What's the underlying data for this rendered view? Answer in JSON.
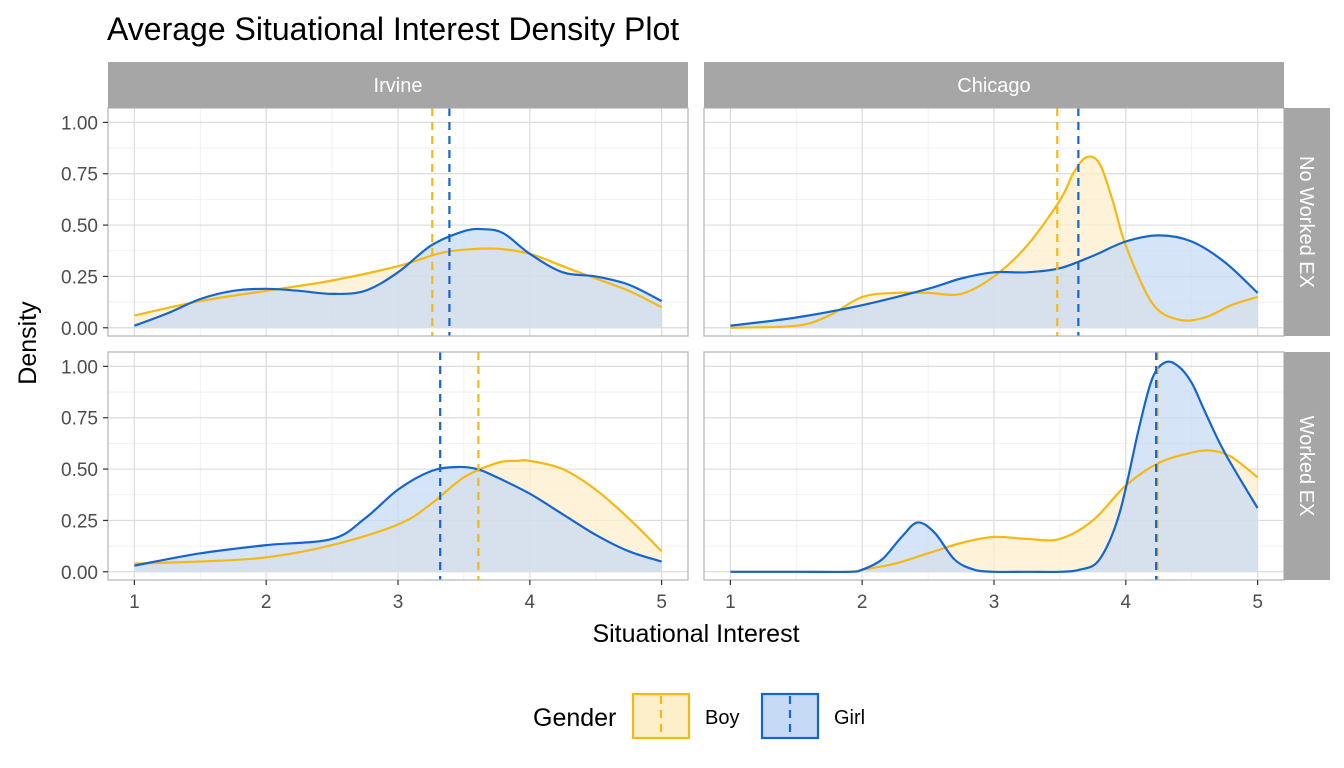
{
  "chart_data": {
    "type": "area",
    "title": "Average Situational Interest Density Plot",
    "xlabel": "Situational Interest",
    "ylabel": "Density",
    "xlim": [
      0.8,
      5.2
    ],
    "ylim": [
      -0.04,
      1.07
    ],
    "x_ticks": [
      1,
      2,
      3,
      4,
      5
    ],
    "y_ticks": [
      0,
      0.25,
      0.5,
      0.75,
      1.0
    ],
    "y_tick_labels": [
      "0.00",
      "0.25",
      "0.50",
      "0.75",
      "1.00"
    ],
    "grid": true,
    "legend": {
      "title": "Gender",
      "position": "bottom",
      "entries": [
        {
          "label": "Boy",
          "color": "#F5B915",
          "fill": "#FDEFC9"
        },
        {
          "label": "Girl",
          "color": "#1565D0",
          "fill": "#C6D9F5"
        }
      ]
    },
    "columns": [
      "Irvine",
      "Chicago"
    ],
    "rows": [
      "No Worked EX",
      "Worked EX"
    ],
    "series_names": [
      "Boy",
      "Girl"
    ],
    "panels": [
      {
        "column": "Irvine",
        "row": "No Worked EX",
        "means": {
          "Boy": 3.26,
          "Girl": 3.39
        },
        "series": [
          {
            "name": "Boy",
            "x": [
              1.0,
              1.5,
              2.0,
              2.5,
              3.0,
              3.3,
              3.5,
              3.75,
              4.0,
              4.25,
              4.5,
              4.75,
              5.0
            ],
            "y": [
              0.06,
              0.13,
              0.18,
              0.23,
              0.3,
              0.36,
              0.38,
              0.385,
              0.36,
              0.3,
              0.24,
              0.18,
              0.1
            ]
          },
          {
            "name": "Girl",
            "x": [
              1.0,
              1.25,
              1.5,
              1.75,
              2.0,
              2.25,
              2.5,
              2.75,
              3.0,
              3.25,
              3.5,
              3.65,
              3.8,
              4.0,
              4.25,
              4.5,
              4.75,
              5.0
            ],
            "y": [
              0.01,
              0.07,
              0.14,
              0.18,
              0.19,
              0.18,
              0.165,
              0.18,
              0.27,
              0.4,
              0.47,
              0.48,
              0.46,
              0.36,
              0.27,
              0.25,
              0.21,
              0.13
            ]
          }
        ]
      },
      {
        "column": "Chicago",
        "row": "No Worked EX",
        "means": {
          "Boy": 3.48,
          "Girl": 3.64
        },
        "series": [
          {
            "name": "Boy",
            "x": [
              1.0,
              1.5,
              1.75,
              2.0,
              2.25,
              2.5,
              2.75,
              3.0,
              3.25,
              3.5,
              3.6,
              3.7,
              3.8,
              3.9,
              4.0,
              4.2,
              4.4,
              4.6,
              4.8,
              5.0
            ],
            "y": [
              0.0,
              0.01,
              0.06,
              0.15,
              0.17,
              0.17,
              0.165,
              0.25,
              0.4,
              0.62,
              0.75,
              0.83,
              0.8,
              0.62,
              0.4,
              0.12,
              0.04,
              0.05,
              0.11,
              0.15
            ]
          },
          {
            "name": "Girl",
            "x": [
              1.0,
              1.5,
              2.0,
              2.5,
              2.75,
              3.0,
              3.25,
              3.5,
              3.75,
              4.0,
              4.25,
              4.5,
              4.75,
              5.0
            ],
            "y": [
              0.01,
              0.05,
              0.11,
              0.19,
              0.24,
              0.27,
              0.27,
              0.29,
              0.35,
              0.42,
              0.45,
              0.42,
              0.32,
              0.17
            ]
          }
        ]
      },
      {
        "column": "Irvine",
        "row": "Worked EX",
        "means": {
          "Boy": 3.61,
          "Girl": 3.32
        },
        "series": [
          {
            "name": "Boy",
            "x": [
              1.0,
              1.5,
              2.0,
              2.5,
              3.0,
              3.25,
              3.5,
              3.75,
              3.9,
              4.0,
              4.25,
              4.5,
              4.75,
              5.0
            ],
            "y": [
              0.04,
              0.05,
              0.07,
              0.13,
              0.23,
              0.33,
              0.46,
              0.53,
              0.54,
              0.54,
              0.5,
              0.4,
              0.26,
              0.1
            ]
          },
          {
            "name": "Girl",
            "x": [
              1.0,
              1.5,
              2.0,
              2.5,
              2.75,
              3.0,
              3.25,
              3.45,
              3.6,
              3.75,
              4.0,
              4.25,
              4.5,
              4.75,
              5.0
            ],
            "y": [
              0.03,
              0.09,
              0.13,
              0.16,
              0.26,
              0.4,
              0.49,
              0.51,
              0.5,
              0.46,
              0.38,
              0.28,
              0.18,
              0.1,
              0.05
            ]
          }
        ]
      },
      {
        "column": "Chicago",
        "row": "Worked EX",
        "means": {
          "Boy": 4.24,
          "Girl": 4.23
        },
        "series": [
          {
            "name": "Boy",
            "x": [
              1.0,
              1.5,
              1.9,
              2.0,
              2.25,
              2.5,
              2.75,
              3.0,
              3.25,
              3.5,
              3.75,
              4.0,
              4.25,
              4.5,
              4.65,
              4.8,
              5.0
            ],
            "y": [
              0.0,
              0.0,
              0.0,
              0.01,
              0.04,
              0.09,
              0.14,
              0.17,
              0.16,
              0.16,
              0.25,
              0.42,
              0.53,
              0.58,
              0.59,
              0.56,
              0.46
            ]
          },
          {
            "name": "Girl",
            "x": [
              1.0,
              1.5,
              1.9,
              2.0,
              2.15,
              2.3,
              2.42,
              2.55,
              2.7,
              2.85,
              3.0,
              3.25,
              3.5,
              3.65,
              3.8,
              3.95,
              4.1,
              4.2,
              4.3,
              4.4,
              4.5,
              4.6,
              4.75,
              5.0
            ],
            "y": [
              0.0,
              0.0,
              0.0,
              0.01,
              0.06,
              0.17,
              0.24,
              0.19,
              0.06,
              0.01,
              0.0,
              0.0,
              0.0,
              0.01,
              0.06,
              0.28,
              0.7,
              0.94,
              1.02,
              1.0,
              0.92,
              0.78,
              0.58,
              0.31
            ]
          }
        ]
      }
    ]
  }
}
